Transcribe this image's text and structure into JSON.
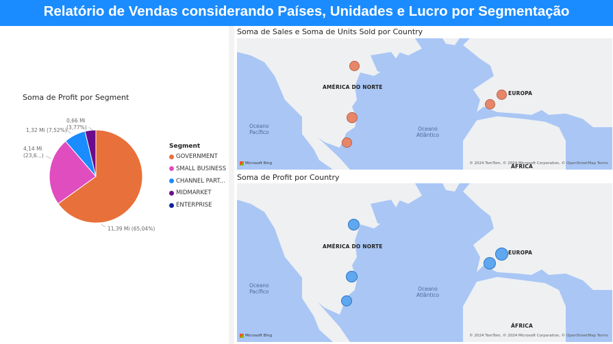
{
  "header": {
    "title": "Relatório de Vendas considerando Países, Unidades e Lucro por Segmentação"
  },
  "pie_chart": {
    "title": "Soma de Profit por Segment"
  },
  "chart_data": {
    "type": "pie",
    "title": "Soma de Profit por Segment",
    "legend_title": "Segment",
    "legend_position": "right",
    "slices": [
      {
        "name": "GOVERNMENT",
        "value": 11.39,
        "label": "11,39 Mi (65,04%)",
        "color": "#e8703a"
      },
      {
        "name": "SMALL BUSINESS",
        "value": 4.14,
        "label": "4,14 Mi (23,6...)",
        "color": "#e04dbf"
      },
      {
        "name": "CHANNEL PART...",
        "value": 1.32,
        "label": "1,32 Mi (7,52%)",
        "color": "#1a8cff"
      },
      {
        "name": "MIDMARKET",
        "value": 0.66,
        "label": "0,66 Mi (3,77%)",
        "color": "#6b0c8c"
      },
      {
        "name": "ENTERPRISE",
        "value": 0,
        "label": "",
        "color": "#12239e"
      }
    ]
  },
  "map1": {
    "title": "Soma de Sales e Soma de Units Sold por Country",
    "bubble_color": "#e8866a",
    "labels": {
      "north_america": "AMÉRICA DO NORTE",
      "europe": "EUROPA",
      "africa": "ÁFRICA",
      "pacific_1": "Oceano",
      "pacific_2": "Pacífico",
      "atlantic_1": "Oceano",
      "atlantic_2": "Atlântico"
    },
    "bing": "Microsoft Bing",
    "attribution": "© 2024 TomTom, © 2024 Microsoft Corporation, © OpenStreetMap  Terms"
  },
  "map2": {
    "title": "Soma de Profit por Country",
    "bubble_color": "#5fa8f0",
    "labels": {
      "north_america": "AMÉRICA DO NORTE",
      "europe": "EUROPA",
      "africa": "ÁFRICA",
      "pacific_1": "Oceano",
      "pacific_2": "Pacífico",
      "atlantic_1": "Oceano",
      "atlantic_2": "Atlântico"
    },
    "bing": "Microsoft Bing",
    "attribution": "© 2024 TomTom, © 2024 Microsoft Corporation, © OpenStreetMap  Terms"
  }
}
